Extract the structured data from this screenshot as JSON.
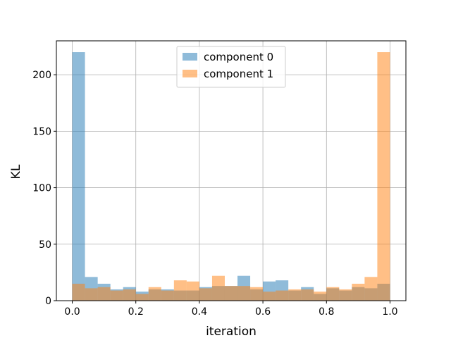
{
  "chart_data": {
    "type": "bar",
    "xlabel": "iteration",
    "ylabel": "KL",
    "xlim": [
      -0.05,
      1.05
    ],
    "ylim": [
      0,
      230
    ],
    "xticks": [
      0.0,
      0.2,
      0.4,
      0.6,
      0.8,
      1.0
    ],
    "xtick_labels": [
      "0.0",
      "0.2",
      "0.4",
      "0.6",
      "0.8",
      "1.0"
    ],
    "yticks": [
      0,
      50,
      100,
      150,
      200
    ],
    "ytick_labels": [
      "0",
      "50",
      "100",
      "150",
      "200"
    ],
    "grid": true,
    "legend_position": "top-center",
    "bin_edges": [
      0.0,
      0.04,
      0.08,
      0.12,
      0.16,
      0.2,
      0.24,
      0.28,
      0.32,
      0.36,
      0.4,
      0.44,
      0.48,
      0.52,
      0.56,
      0.6,
      0.64,
      0.68,
      0.72,
      0.76,
      0.8,
      0.84,
      0.88,
      0.92,
      0.96,
      1.0
    ],
    "series": [
      {
        "name": "component 0",
        "color": "#1f77b4",
        "opacity": 0.5,
        "values": [
          220,
          21,
          15,
          10,
          12,
          8,
          10,
          10,
          9,
          9,
          12,
          13,
          13,
          22,
          10,
          17,
          18,
          9,
          12,
          6,
          11,
          9,
          12,
          11,
          15
        ]
      },
      {
        "name": "component 1",
        "color": "#ff7f0e",
        "opacity": 0.5,
        "values": [
          15,
          11,
          12,
          9,
          10,
          6,
          12,
          9,
          18,
          17,
          11,
          22,
          13,
          13,
          12,
          8,
          9,
          10,
          10,
          8,
          12,
          10,
          15,
          21,
          220
        ]
      }
    ]
  }
}
